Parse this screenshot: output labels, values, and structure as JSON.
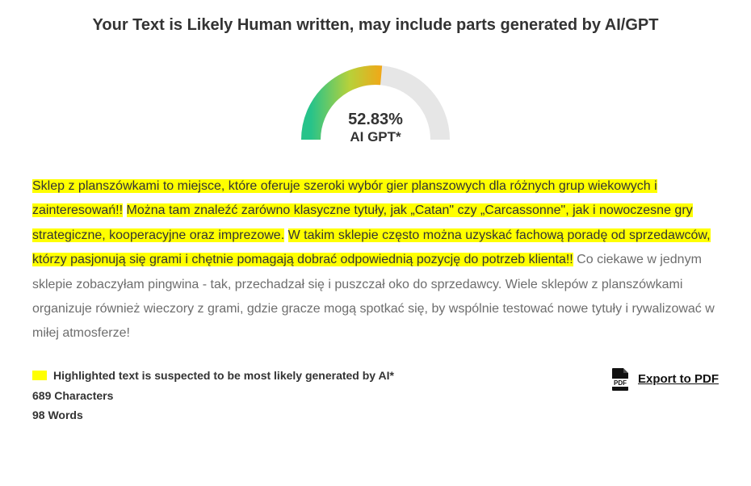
{
  "headline": "Your Text is Likely Human written, may include parts generated by AI/GPT",
  "gauge": {
    "percent_value": 52.83,
    "percent_text": "52.83%",
    "label": "AI GPT*",
    "arc_radius": 80,
    "arc_stroke_width": 24,
    "track_color": "#e6e6e6",
    "gradient_start": "#27c38a",
    "gradient_mid": "#b7d13a",
    "gradient_end": "#f0a818",
    "background_color": "#ffffff",
    "text_color": "#333333",
    "percent_fontsize": 20,
    "label_fontsize": 17
  },
  "analysis": {
    "highlight_color": "#ffff00",
    "text_color_plain": "#6d6d6d",
    "text_color_highlight": "#333333",
    "font_size": 16,
    "line_height": 1.9,
    "segments": [
      {
        "text": "Sklep z planszówkami to miejsce, które oferuje szeroki wybór gier planszowych dla różnych grup wiekowych i zainteresowań!!",
        "hl": true
      },
      {
        "text": " ",
        "hl": false
      },
      {
        "text": "Można tam znaleźć zarówno klasyczne tytuły, jak „Catan\" czy „Carcassonne\", jak i nowoczesne gry strategiczne, kooperacyjne oraz imprezowe.",
        "hl": true
      },
      {
        "text": " ",
        "hl": false
      },
      {
        "text": "W takim sklepie często można uzyskać fachową poradę od sprzedawców, którzy pasjonują się grami i chętnie pomagają dobrać odpowiednią pozycję do potrzeb klienta!!",
        "hl": true
      },
      {
        "text": " Co ciekawe w jednym sklepie zobaczyłam pingwina - tak, przechadzał się i puszczał oko do sprzedawcy. Wiele sklepów z planszówkami organizuje również wieczory z grami, gdzie gracze mogą spotkać się, by wspólnie testować nowe tytuły i rywalizować w miłej atmosferze!",
        "hl": false
      }
    ]
  },
  "legend": {
    "caption": "Highlighted text is suspected to be most likely generated by AI*",
    "swatch_color": "#ffff00",
    "characters_label": "689 Characters",
    "words_label": "98 Words"
  },
  "export": {
    "label": "Export to PDF",
    "icon_name": "pdf-icon"
  }
}
